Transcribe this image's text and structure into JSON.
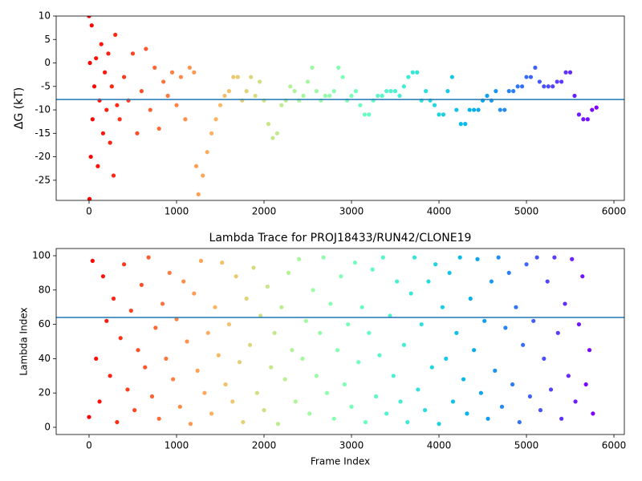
{
  "chart_data": [
    {
      "type": "scatter",
      "ylabel": "ΔG (kT)",
      "colormap": "rainbow_r",
      "x": [
        0,
        5,
        10,
        20,
        30,
        40,
        60,
        80,
        100,
        120,
        140,
        160,
        180,
        200,
        220,
        240,
        260,
        280,
        300,
        320,
        350,
        400,
        450,
        500,
        550,
        600,
        650,
        700,
        750,
        800,
        850,
        900,
        950,
        1000,
        1050,
        1100,
        1150,
        1200,
        1225,
        1250,
        1300,
        1350,
        1400,
        1450,
        1500,
        1550,
        1600,
        1650,
        1700,
        1750,
        1800,
        1850,
        1900,
        1950,
        2000,
        2050,
        2100,
        2150,
        2200,
        2250,
        2300,
        2350,
        2400,
        2450,
        2500,
        2550,
        2600,
        2650,
        2700,
        2750,
        2800,
        2850,
        2900,
        2950,
        3000,
        3050,
        3100,
        3150,
        3200,
        3250,
        3300,
        3350,
        3400,
        3450,
        3500,
        3550,
        3600,
        3650,
        3700,
        3750,
        3800,
        3850,
        3900,
        3950,
        4000,
        4050,
        4100,
        4150,
        4200,
        4250,
        4300,
        4350,
        4400,
        4450,
        4500,
        4550,
        4600,
        4650,
        4700,
        4750,
        4800,
        4850,
        4900,
        4950,
        5000,
        5050,
        5100,
        5150,
        5200,
        5250,
        5300,
        5350,
        5400,
        5450,
        5500,
        5550,
        5600,
        5650,
        5700,
        5750,
        5800
      ],
      "values": [
        10,
        -29,
        0,
        -20,
        8,
        -12,
        -5,
        1,
        -22,
        -8,
        4,
        -15,
        -2,
        -10,
        2,
        -17,
        -5,
        -24,
        6,
        -9,
        -12,
        -3,
        -8,
        2,
        -15,
        -6,
        3,
        -10,
        -1,
        -14,
        -4,
        -7,
        -2,
        -9,
        -3,
        -12,
        -1,
        -2,
        -22,
        -28,
        -24,
        -19,
        -15,
        -12,
        -9,
        -7,
        -6,
        -3,
        -3,
        -8,
        -6,
        -3,
        -7,
        -4,
        -8,
        -13,
        -16,
        -15,
        -9,
        -8,
        -5,
        -6,
        -8,
        -7,
        -4,
        -1,
        -6,
        -8,
        -7,
        -7,
        -6,
        -1,
        -3,
        -8,
        -7,
        -6,
        -9,
        -11,
        -11,
        -8,
        -7,
        -7,
        -6,
        -6,
        -6,
        -7,
        -5,
        -3,
        -2,
        -2,
        -8,
        -6,
        -8,
        -9,
        -11,
        -11,
        -6,
        -3,
        -10,
        -13,
        -13,
        -10,
        -10,
        -10,
        -8,
        -7,
        -8,
        -6,
        -10,
        -10,
        -6,
        -6,
        -5,
        -5,
        -3,
        -3,
        -1,
        -4,
        -5,
        -5,
        -5,
        -4,
        -4,
        -2,
        -2,
        -7,
        -11,
        -12,
        -12,
        -10,
        -9.5
      ],
      "xlim": [
        -376,
        6119
      ],
      "xticks": [
        0,
        1000,
        2000,
        3000,
        4000,
        5000,
        6000
      ],
      "ylim": [
        -29.3,
        10
      ],
      "yticks": [
        -25,
        -20,
        -15,
        -10,
        -5,
        0,
        5,
        10
      ],
      "hline": -7.8,
      "hline_color": "#1f77b4"
    },
    {
      "type": "scatter",
      "title": "Lambda Trace for PROJ18433/RUN42/CLONE19",
      "xlabel": "Frame Index",
      "ylabel": "Lambda Index",
      "colormap": "rainbow_r",
      "x": [
        0,
        40,
        80,
        120,
        160,
        200,
        240,
        280,
        320,
        360,
        400,
        440,
        480,
        520,
        560,
        600,
        640,
        680,
        720,
        760,
        800,
        840,
        880,
        920,
        960,
        1000,
        1040,
        1080,
        1120,
        1160,
        1200,
        1240,
        1280,
        1320,
        1360,
        1400,
        1440,
        1480,
        1520,
        1560,
        1600,
        1640,
        1680,
        1720,
        1760,
        1800,
        1840,
        1880,
        1920,
        1960,
        2000,
        2040,
        2080,
        2120,
        2160,
        2200,
        2240,
        2280,
        2320,
        2360,
        2400,
        2440,
        2480,
        2520,
        2560,
        2600,
        2640,
        2680,
        2720,
        2760,
        2800,
        2840,
        2880,
        2920,
        2960,
        3000,
        3040,
        3080,
        3120,
        3160,
        3200,
        3240,
        3280,
        3320,
        3360,
        3400,
        3440,
        3480,
        3520,
        3560,
        3600,
        3640,
        3680,
        3720,
        3760,
        3800,
        3840,
        3880,
        3920,
        3960,
        4000,
        4040,
        4080,
        4120,
        4160,
        4200,
        4240,
        4280,
        4320,
        4360,
        4400,
        4440,
        4480,
        4520,
        4560,
        4600,
        4640,
        4680,
        4720,
        4760,
        4800,
        4840,
        4880,
        4920,
        4960,
        5000,
        5040,
        5080,
        5120,
        5160,
        5200,
        5240,
        5280,
        5320,
        5360,
        5400,
        5440,
        5480,
        5520,
        5560,
        5600,
        5640,
        5680,
        5720,
        5760
      ],
      "values": [
        6,
        97,
        40,
        15,
        88,
        62,
        30,
        75,
        3,
        52,
        95,
        22,
        68,
        10,
        45,
        83,
        35,
        99,
        18,
        58,
        5,
        72,
        40,
        90,
        28,
        63,
        12,
        85,
        50,
        2,
        78,
        33,
        97,
        20,
        55,
        8,
        70,
        42,
        96,
        25,
        60,
        15,
        88,
        38,
        3,
        75,
        48,
        93,
        20,
        65,
        10,
        82,
        35,
        55,
        2,
        70,
        28,
        90,
        45,
        15,
        98,
        40,
        62,
        8,
        80,
        30,
        55,
        99,
        20,
        72,
        5,
        45,
        88,
        25,
        60,
        12,
        96,
        38,
        70,
        3,
        55,
        92,
        18,
        42,
        99,
        8,
        65,
        30,
        85,
        15,
        48,
        3,
        78,
        99,
        22,
        60,
        10,
        85,
        35,
        95,
        2,
        70,
        40,
        90,
        15,
        55,
        99,
        28,
        8,
        75,
        45,
        98,
        20,
        62,
        5,
        85,
        33,
        99,
        12,
        58,
        90,
        25,
        70,
        3,
        48,
        95,
        18,
        62,
        99,
        10,
        40,
        85,
        22,
        99,
        55,
        5,
        72,
        30,
        98,
        15,
        60,
        88,
        25,
        45,
        8
      ],
      "xlim": [
        -376,
        6119
      ],
      "xticks": [
        0,
        1000,
        2000,
        3000,
        4000,
        5000,
        6000
      ],
      "ylim": [
        -4.2,
        104.2
      ],
      "yticks": [
        0,
        20,
        40,
        60,
        80,
        100
      ],
      "hline": 64,
      "hline_color": "#1f77b4"
    }
  ]
}
